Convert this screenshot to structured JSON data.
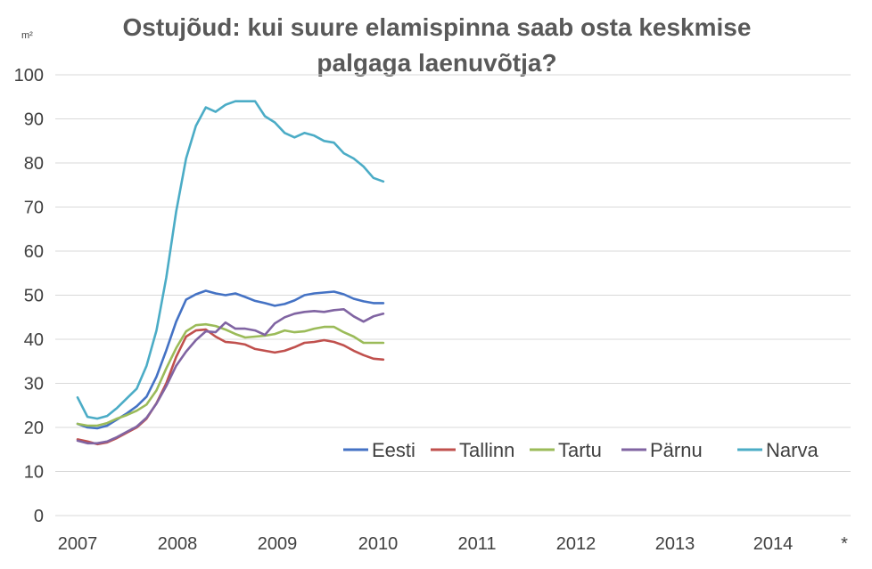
{
  "chart_data": {
    "type": "line",
    "title": "Ostujõud: kui suure elamispinna saab osta keskmise palgaga laenuvõtja?",
    "title_lines": [
      "Ostujõud: kui suure elamispinna saab osta keskmise",
      "palgaga laenuvõtja?"
    ],
    "unit_label": "m²",
    "ylim": [
      0,
      100
    ],
    "y_ticks": [
      "0",
      "10",
      "20",
      "30",
      "40",
      "50",
      "60",
      "70",
      "80",
      "90",
      "100"
    ],
    "x_tick_labels": [
      "2007",
      "2008",
      "2009",
      "2010",
      "2011",
      "2012",
      "2013",
      "2014",
      "*"
    ],
    "grid": true,
    "legend_position": "bottom-right, inside plot",
    "series": [
      {
        "name": "Eesti",
        "color": "#4472C4",
        "values": [
          20.8,
          20.0,
          19.8,
          20.4,
          21.8,
          23.2,
          24.8,
          27.0,
          31.5,
          37.5,
          44.0,
          49.0,
          50.2,
          51.0,
          50.4,
          50.0,
          50.4,
          49.6,
          48.7,
          48.2,
          47.6,
          48.0,
          48.8,
          50.0,
          50.4,
          50.6,
          50.8,
          50.2,
          49.2,
          48.6,
          48.2,
          48.2
        ]
      },
      {
        "name": "Tallinn",
        "color": "#C0504D",
        "values": [
          17.3,
          16.8,
          16.2,
          16.6,
          17.6,
          18.8,
          20.0,
          22.0,
          25.5,
          30.0,
          36.0,
          40.6,
          42.0,
          42.2,
          40.6,
          39.4,
          39.2,
          38.8,
          37.8,
          37.4,
          37.0,
          37.4,
          38.2,
          39.2,
          39.4,
          39.8,
          39.4,
          38.6,
          37.4,
          36.4,
          35.6,
          35.4
        ]
      },
      {
        "name": "Tartu",
        "color": "#9BBB59",
        "values": [
          20.8,
          20.4,
          20.4,
          21.0,
          22.0,
          22.8,
          23.8,
          25.2,
          28.4,
          33.4,
          38.0,
          41.8,
          43.2,
          43.4,
          43.0,
          42.2,
          41.2,
          40.4,
          40.6,
          40.8,
          41.2,
          42.0,
          41.6,
          41.8,
          42.4,
          42.8,
          42.8,
          41.6,
          40.6,
          39.2,
          39.2,
          39.2
        ]
      },
      {
        "name": "Pärnu",
        "color": "#8064A2",
        "values": [
          17.0,
          16.4,
          16.4,
          16.8,
          17.8,
          19.0,
          20.2,
          22.2,
          25.4,
          29.4,
          34.0,
          37.2,
          39.8,
          41.8,
          41.6,
          43.8,
          42.4,
          42.4,
          42.0,
          41.0,
          43.6,
          45.0,
          45.8,
          46.2,
          46.4,
          46.2,
          46.6,
          46.8,
          45.2,
          44.0,
          45.2,
          45.8
        ]
      },
      {
        "name": "Narva",
        "color": "#4BACC6",
        "values": [
          26.8,
          22.4,
          22.0,
          22.6,
          24.4,
          26.6,
          28.8,
          34.0,
          42.0,
          54.0,
          69.0,
          81.0,
          88.4,
          92.6,
          91.6,
          93.2,
          94.0,
          94.0,
          94.0,
          90.6,
          89.2,
          86.8,
          85.8,
          86.8,
          86.2,
          85.0,
          84.6,
          82.2,
          81.0,
          79.2,
          76.6,
          75.8
        ]
      }
    ]
  }
}
